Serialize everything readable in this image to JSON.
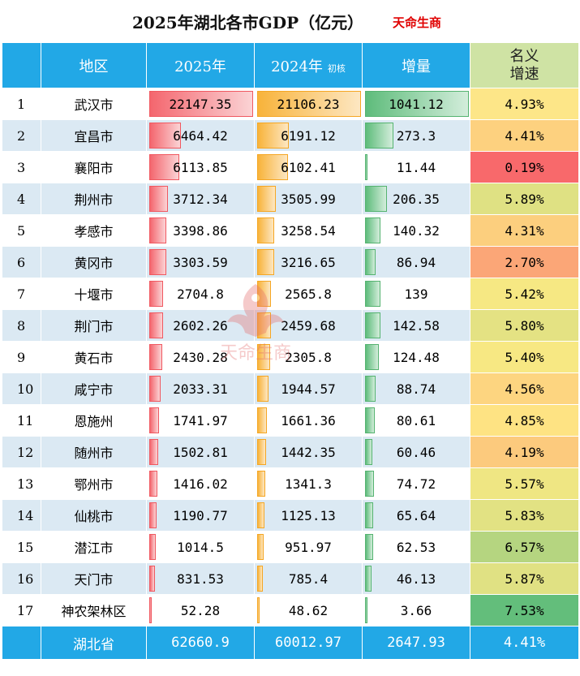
{
  "title": "2025年湖北各市GDP（亿元）",
  "brand": "天命生商",
  "watermark_text": "天命生商",
  "headers": {
    "region": "地区",
    "y2025": "2025年",
    "y2024": "2024年",
    "y2024_note": "初核",
    "increase": "增量",
    "growth_line1": "名义",
    "growth_line2": "增速"
  },
  "chart_data": {
    "type": "table",
    "columns": [
      "",
      "地区",
      "2025年",
      "2024年 初核",
      "增量",
      "名义增速"
    ],
    "rows": [
      {
        "rank": "1",
        "region": "武汉市",
        "y2025": "22147.35",
        "y2024": "21106.23",
        "inc": "1041.12",
        "growth": "4.93%",
        "growth_color": "#fde688"
      },
      {
        "rank": "2",
        "region": "宜昌市",
        "y2025": "6464.42",
        "y2024": "6191.12",
        "inc": "273.3",
        "growth": "4.41%",
        "growth_color": "#fdd17f"
      },
      {
        "rank": "3",
        "region": "襄阳市",
        "y2025": "6113.85",
        "y2024": "6102.41",
        "inc": "11.44",
        "growth": "0.19%",
        "growth_color": "#f8696b"
      },
      {
        "rank": "4",
        "region": "荆州市",
        "y2025": "3712.34",
        "y2024": "3505.99",
        "inc": "206.35",
        "growth": "5.89%",
        "growth_color": "#dfe183"
      },
      {
        "rank": "5",
        "region": "孝感市",
        "y2025": "3398.86",
        "y2024": "3258.54",
        "inc": "140.32",
        "growth": "4.31%",
        "growth_color": "#fccf7e"
      },
      {
        "rank": "6",
        "region": "黄冈市",
        "y2025": "3303.59",
        "y2024": "3216.65",
        "inc": "86.94",
        "growth": "2.70%",
        "growth_color": "#fba677"
      },
      {
        "rank": "7",
        "region": "十堰市",
        "y2025": "2704.8",
        "y2024": "2565.8",
        "inc": "139",
        "growth": "5.42%",
        "growth_color": "#f6e883"
      },
      {
        "rank": "8",
        "region": "荆门市",
        "y2025": "2602.26",
        "y2024": "2459.68",
        "inc": "142.58",
        "growth": "5.80%",
        "growth_color": "#e4e283"
      },
      {
        "rank": "9",
        "region": "黄石市",
        "y2025": "2430.28",
        "y2024": "2305.8",
        "inc": "124.48",
        "growth": "5.40%",
        "growth_color": "#f7e883"
      },
      {
        "rank": "10",
        "region": "咸宁市",
        "y2025": "2033.31",
        "y2024": "1944.57",
        "inc": "88.74",
        "growth": "4.56%",
        "growth_color": "#fdd580"
      },
      {
        "rank": "11",
        "region": "恩施州",
        "y2025": "1741.97",
        "y2024": "1661.36",
        "inc": "80.61",
        "growth": "4.85%",
        "growth_color": "#fee383"
      },
      {
        "rank": "12",
        "region": "随州市",
        "y2025": "1502.81",
        "y2024": "1442.35",
        "inc": "60.46",
        "growth": "4.19%",
        "growth_color": "#fcca7d"
      },
      {
        "rank": "13",
        "region": "鄂州市",
        "y2025": "1416.02",
        "y2024": "1341.3",
        "inc": "74.72",
        "growth": "5.57%",
        "growth_color": "#efe683"
      },
      {
        "rank": "14",
        "region": "仙桃市",
        "y2025": "1190.77",
        "y2024": "1125.13",
        "inc": "65.64",
        "growth": "5.83%",
        "growth_color": "#e2e283"
      },
      {
        "rank": "15",
        "region": "潜江市",
        "y2025": "1014.5",
        "y2024": "951.97",
        "inc": "62.53",
        "growth": "6.57%",
        "growth_color": "#b5d580"
      },
      {
        "rank": "16",
        "region": "天门市",
        "y2025": "831.53",
        "y2024": "785.4",
        "inc": "46.13",
        "growth": "5.87%",
        "growth_color": "#e0e183"
      },
      {
        "rank": "17",
        "region": "神农架林区",
        "y2025": "52.28",
        "y2024": "48.62",
        "inc": "3.66",
        "growth": "7.53%",
        "growth_color": "#63be7b"
      }
    ],
    "total": {
      "region": "湖北省",
      "y2025": "62660.9",
      "y2024": "60012.97",
      "inc": "2647.93",
      "growth": "4.41%"
    }
  }
}
